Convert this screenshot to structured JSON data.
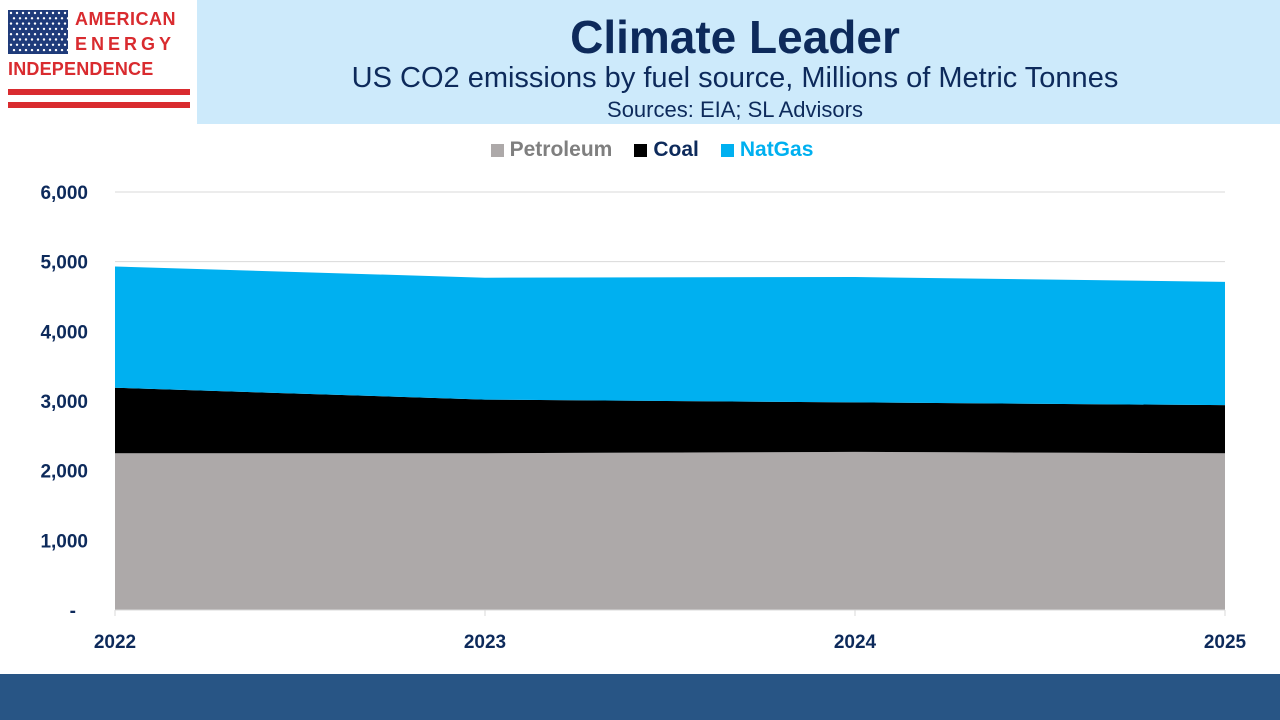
{
  "logo": {
    "line1": "AMERICAN",
    "line2": "ENERGY",
    "line3": "INDEPENDENCE"
  },
  "header": {
    "title": "Climate Leader",
    "subtitle": "US CO2 emissions by fuel source, Millions of Metric Tonnes",
    "sources": "Sources: EIA; SL Advisors"
  },
  "colors": {
    "header_bg": "#cdeafb",
    "title_text": "#0d2a5b",
    "petroleum": "#ada9a9",
    "coal": "#000000",
    "natgas": "#00b0f0",
    "footer": "#285585",
    "logo_red": "#d92b2f"
  },
  "chart_data": {
    "type": "area",
    "stacked": true,
    "x": [
      "2022",
      "2023",
      "2024",
      "2025"
    ],
    "series": [
      {
        "name": "Petroleum",
        "values": [
          2250,
          2250,
          2270,
          2250
        ],
        "color": "#ada9a9"
      },
      {
        "name": "Coal",
        "values": [
          940,
          770,
          710,
          690
        ],
        "color": "#000000"
      },
      {
        "name": "NatGas",
        "values": [
          1740,
          1750,
          1800,
          1770
        ],
        "color": "#00b0f0"
      }
    ],
    "ylim": [
      0,
      6000
    ],
    "yticks": [
      0,
      1000,
      2000,
      3000,
      4000,
      5000,
      6000
    ],
    "ytick_labels": [
      "-",
      "1,000",
      "2,000",
      "3,000",
      "4,000",
      "5,000",
      "6,000"
    ],
    "grid": true,
    "legend_position": "top-center",
    "xlabel": "",
    "ylabel": ""
  }
}
